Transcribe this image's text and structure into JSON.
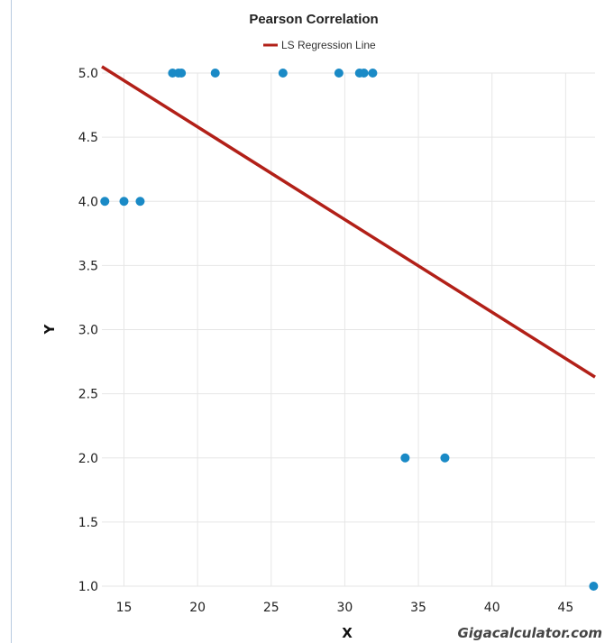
{
  "chart_data": {
    "type": "scatter",
    "title": "Pearson Correlation",
    "xlabel": "X",
    "ylabel": "Y",
    "xlim": [
      13.5,
      47
    ],
    "ylim": [
      1.0,
      5.0
    ],
    "grid": true,
    "legend_position": "top-center",
    "x_ticks": [
      15,
      20,
      25,
      30,
      35,
      40,
      45
    ],
    "y_ticks": [
      "1.0",
      "1.5",
      "2.0",
      "2.5",
      "3.0",
      "3.5",
      "4.0",
      "4.5",
      "5.0"
    ],
    "points": [
      {
        "x": 13.7,
        "y": 4.0
      },
      {
        "x": 15.0,
        "y": 4.0
      },
      {
        "x": 16.1,
        "y": 4.0
      },
      {
        "x": 18.3,
        "y": 5.0
      },
      {
        "x": 18.7,
        "y": 5.0
      },
      {
        "x": 18.9,
        "y": 5.0
      },
      {
        "x": 21.2,
        "y": 5.0
      },
      {
        "x": 25.8,
        "y": 5.0
      },
      {
        "x": 29.6,
        "y": 5.0
      },
      {
        "x": 31.0,
        "y": 5.0
      },
      {
        "x": 31.3,
        "y": 5.0
      },
      {
        "x": 31.9,
        "y": 5.0
      },
      {
        "x": 34.1,
        "y": 2.0
      },
      {
        "x": 36.8,
        "y": 2.0
      },
      {
        "x": 46.9,
        "y": 1.0
      }
    ],
    "regression_line": {
      "name": "LS Regression Line",
      "x": [
        13.5,
        47.0
      ],
      "y": [
        5.05,
        2.63
      ]
    },
    "colors": {
      "points": "#1a8ac6",
      "regression": "#b22018",
      "grid": "#e6e6e6"
    }
  },
  "watermark": "Gigacalculator.com"
}
